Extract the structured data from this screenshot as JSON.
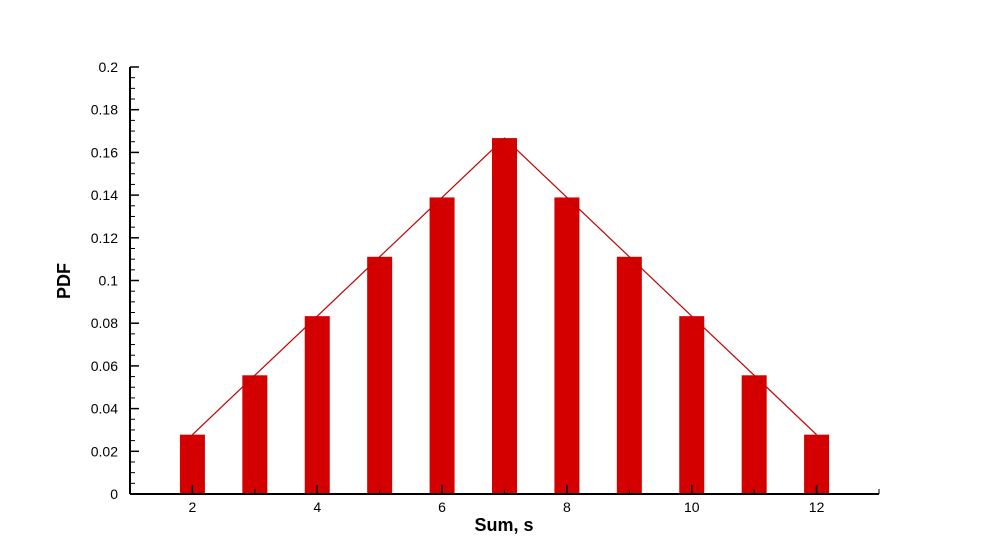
{
  "chart_data": {
    "type": "bar",
    "title": "",
    "xlabel": "Sum, s",
    "ylabel": "PDF",
    "x": [
      2,
      3,
      4,
      5,
      6,
      7,
      8,
      9,
      10,
      11,
      12
    ],
    "values": [
      0.0278,
      0.0556,
      0.0833,
      0.1111,
      0.1389,
      0.1667,
      0.1389,
      0.1111,
      0.0833,
      0.0556,
      0.0278
    ],
    "overlay": "line",
    "xlim": [
      1,
      13
    ],
    "ylim": [
      0,
      0.2
    ],
    "xticks": [
      2,
      4,
      6,
      8,
      10,
      12
    ],
    "xtick_labels": [
      "2",
      "4",
      "6",
      "8",
      "10",
      "12"
    ],
    "yticks": [
      0,
      0.02,
      0.04,
      0.06,
      0.08,
      0.1,
      0.12,
      0.14,
      0.16,
      0.18,
      0.2
    ],
    "ytick_labels": [
      "0",
      "0.02",
      "0.04",
      "0.06",
      "0.08",
      "0.1",
      "0.12",
      "0.14",
      "0.16",
      "0.18",
      "0.2"
    ],
    "grid": false,
    "legend": "none",
    "colors": {
      "bar": "#d40000",
      "line": "#c00000",
      "axis": "#000000"
    }
  }
}
